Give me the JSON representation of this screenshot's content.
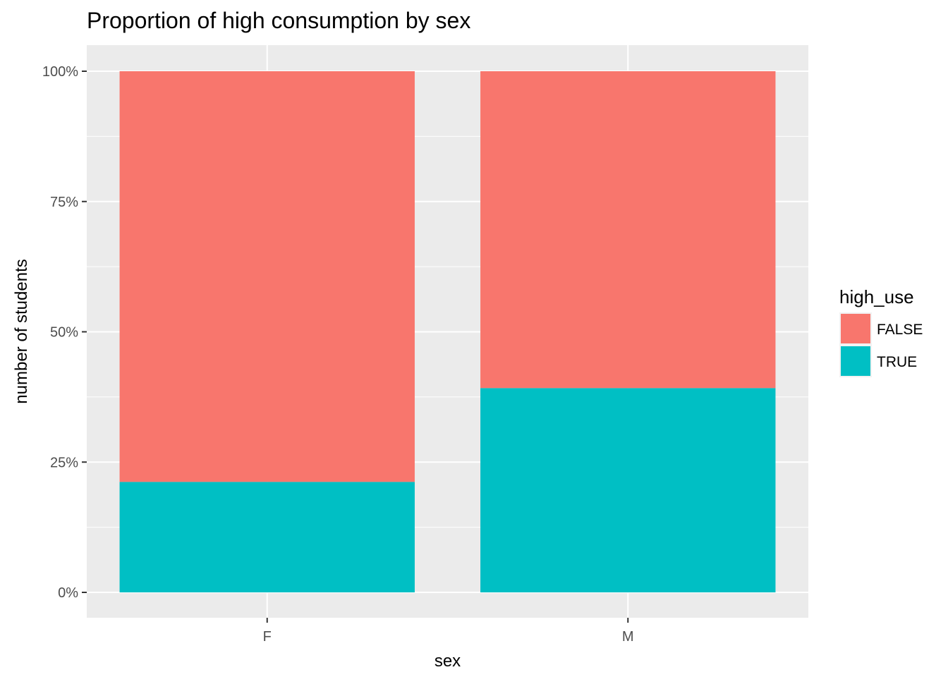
{
  "chart_data": {
    "type": "bar",
    "stacked": "fill",
    "title": "Proportion of high consumption by sex",
    "xlabel": "sex",
    "ylabel": "number of students",
    "categories": [
      "F",
      "M"
    ],
    "series": [
      {
        "name": "FALSE",
        "color": "#F8766D",
        "values": [
          0.788,
          0.608
        ]
      },
      {
        "name": "TRUE",
        "color": "#00BFC4",
        "values": [
          0.212,
          0.392
        ]
      }
    ],
    "ylim": [
      0,
      1
    ],
    "yticks": [
      0,
      0.25,
      0.5,
      0.75,
      1
    ],
    "ytick_labels": [
      "0%",
      "25%",
      "50%",
      "75%",
      "100%"
    ],
    "legend": {
      "title": "high_use",
      "position": "right",
      "entries": [
        "FALSE",
        "TRUE"
      ]
    },
    "grid": true,
    "panel_background": "#EBEBEB"
  }
}
